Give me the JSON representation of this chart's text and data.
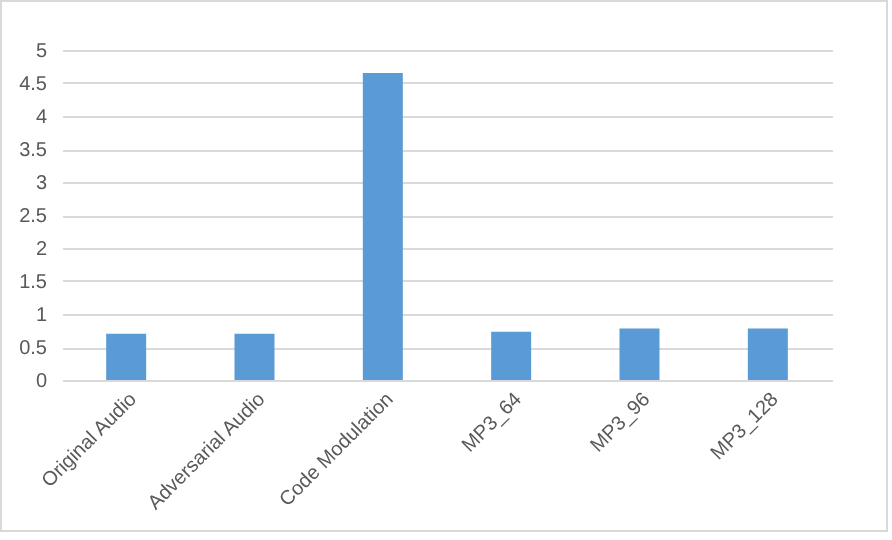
{
  "chart_data": {
    "type": "bar",
    "categories": [
      "Original Audio",
      "Adversarial Audio",
      "Code Modulation",
      "MP3_64",
      "MP3_96",
      "MP3_128"
    ],
    "values": [
      0.7,
      0.7,
      4.65,
      0.73,
      0.78,
      0.78
    ],
    "color": "#5b9bd5",
    "ylim": [
      0,
      5
    ],
    "yticks": [
      0,
      0.5,
      1,
      1.5,
      2,
      2.5,
      3,
      3.5,
      4,
      4.5,
      5
    ],
    "grid": "y"
  }
}
